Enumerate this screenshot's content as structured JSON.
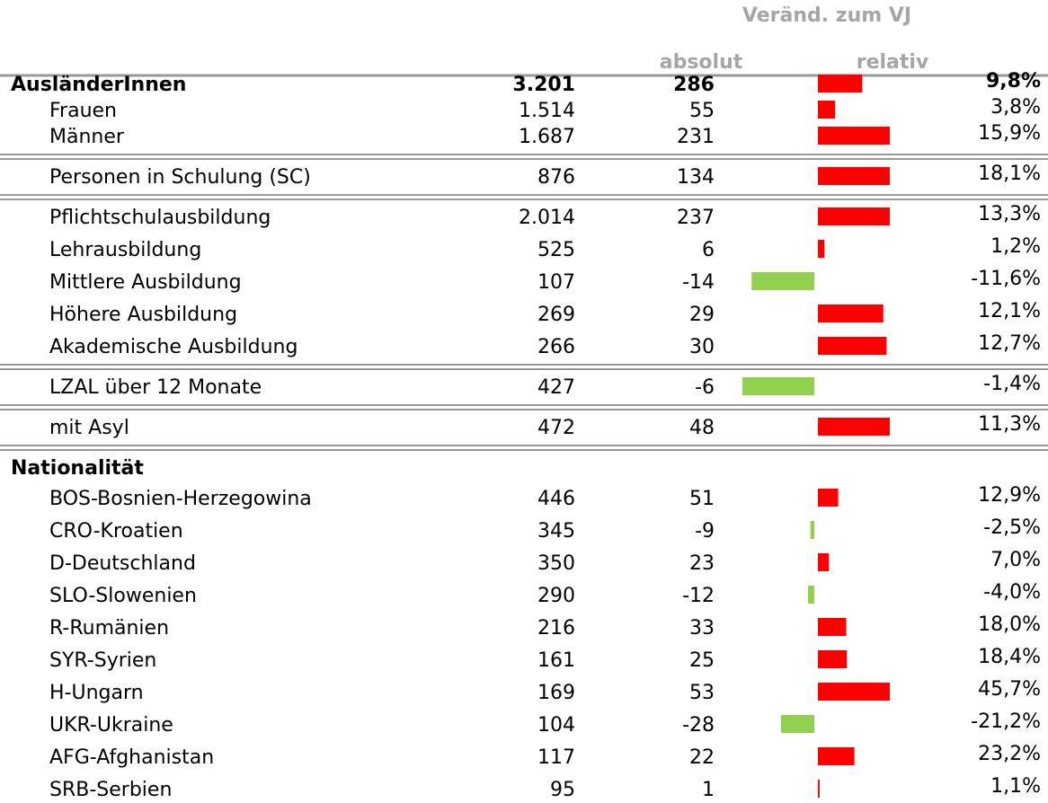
{
  "header": {
    "title": "Veränd. zum VJ",
    "absolut": "absolut",
    "relativ": "relativ"
  },
  "sections": [
    {
      "rows": [
        {
          "label": "AusländerInnen",
          "bestand": "3.201",
          "absolut": 286,
          "relativ": 9.8,
          "relativ_label": "9,8%"
        },
        {
          "label": "Frauen",
          "bestand": "1.514",
          "absolut": 55,
          "relativ": 3.8,
          "relativ_label": "3,8%"
        },
        {
          "label": "Männer",
          "bestand": "1.687",
          "absolut": 231,
          "relativ": 15.9,
          "relativ_label": "15,9%"
        }
      ]
    },
    {
      "rows": [
        {
          "label": "Personen in Schulung (SC)",
          "bestand": "876",
          "absolut": 134,
          "relativ": 18.1,
          "relativ_label": "18,1%"
        }
      ]
    },
    {
      "rows": [
        {
          "label": "Pflichtschulausbildung",
          "bestand": "2.014",
          "absolut": 237,
          "relativ": 13.3,
          "relativ_label": "13,3%"
        },
        {
          "label": "Lehrausbildung",
          "bestand": "525",
          "absolut": 6,
          "relativ": 1.2,
          "relativ_label": "1,2%"
        },
        {
          "label": "Mittlere Ausbildung",
          "bestand": "107",
          "absolut": -14,
          "relativ": -11.6,
          "relativ_label": "-11,6%"
        },
        {
          "label": "Höhere Ausbildung",
          "bestand": "269",
          "absolut": 29,
          "relativ": 12.1,
          "relativ_label": "12,1%"
        },
        {
          "label": "Akademische Ausbildung",
          "bestand": "266",
          "absolut": 30,
          "relativ": 12.7,
          "relativ_label": "12,7%"
        }
      ]
    },
    {
      "rows": [
        {
          "label": "LZAL über 12 Monate",
          "bestand": "427",
          "absolut": -6,
          "relativ": -1.4,
          "relativ_label": "-1,4%"
        }
      ]
    },
    {
      "rows": [
        {
          "label": "mit Asyl",
          "bestand": "472",
          "absolut": 48,
          "relativ": 11.3,
          "relativ_label": "11,3%"
        }
      ]
    },
    {
      "title": "Nationalität",
      "rows": [
        {
          "label": "BOS-Bosnien-Herzegowina",
          "bestand": "446",
          "absolut": 51,
          "relativ": 12.9,
          "relativ_label": "12,9%"
        },
        {
          "label": "CRO-Kroatien",
          "bestand": "345",
          "absolut": -9,
          "relativ": -2.5,
          "relativ_label": "-2,5%"
        },
        {
          "label": "D-Deutschland",
          "bestand": "350",
          "absolut": 23,
          "relativ": 7.0,
          "relativ_label": "7,0%"
        },
        {
          "label": "SLO-Slowenien",
          "bestand": "290",
          "absolut": -12,
          "relativ": -4.0,
          "relativ_label": "-4,0%"
        },
        {
          "label": "R-Rumänien",
          "bestand": "216",
          "absolut": 33,
          "relativ": 18.0,
          "relativ_label": "18,0%"
        },
        {
          "label": "SYR-Syrien",
          "bestand": "161",
          "absolut": 25,
          "relativ": 18.4,
          "relativ_label": "18,4%"
        },
        {
          "label": "H-Ungarn",
          "bestand": "169",
          "absolut": 53,
          "relativ": 45.7,
          "relativ_label": "45,7%"
        },
        {
          "label": "UKR-Ukraine",
          "bestand": "104",
          "absolut": -28,
          "relativ": -21.2,
          "relativ_label": "-21,2%"
        },
        {
          "label": "AFG-Afghanistan",
          "bestand": "117",
          "absolut": 22,
          "relativ": 23.2,
          "relativ_label": "23,2%"
        },
        {
          "label": "SRB-Serbien",
          "bestand": "95",
          "absolut": 1,
          "relativ": 1.1,
          "relativ_label": "1,1%"
        }
      ]
    }
  ]
}
